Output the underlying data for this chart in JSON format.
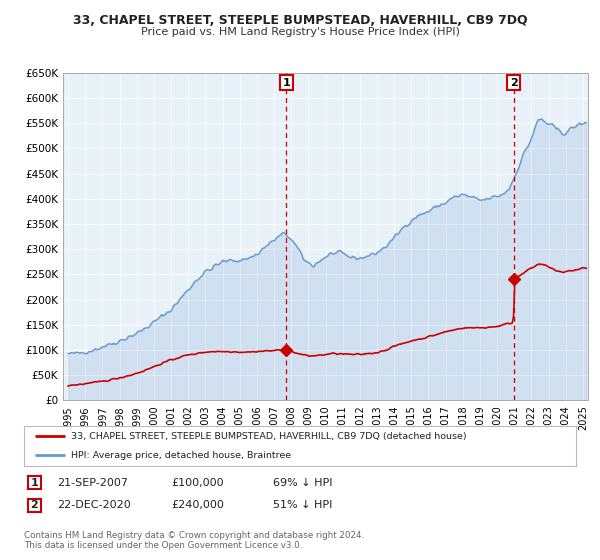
{
  "title": "33, CHAPEL STREET, STEEPLE BUMPSTEAD, HAVERHILL, CB9 7DQ",
  "subtitle": "Price paid vs. HM Land Registry's House Price Index (HPI)",
  "legend_line1": "33, CHAPEL STREET, STEEPLE BUMPSTEAD, HAVERHILL, CB9 7DQ (detached house)",
  "legend_line2": "HPI: Average price, detached house, Braintree",
  "annotation1_date": "21-SEP-2007",
  "annotation1_price": "£100,000",
  "annotation1_hpi": "69% ↓ HPI",
  "annotation2_date": "22-DEC-2020",
  "annotation2_price": "£240,000",
  "annotation2_hpi": "51% ↓ HPI",
  "copyright_text": "Contains HM Land Registry data © Crown copyright and database right 2024.\nThis data is licensed under the Open Government Licence v3.0.",
  "ylim": [
    0,
    650000
  ],
  "yticks": [
    0,
    50000,
    100000,
    150000,
    200000,
    250000,
    300000,
    350000,
    400000,
    450000,
    500000,
    550000,
    600000,
    650000
  ],
  "bg_color": "#ffffff",
  "plot_bg": "#e8f0f8",
  "red_line_color": "#cc0000",
  "blue_line_color": "#6699cc",
  "vline_color": "#cc0000",
  "marker_color": "#cc0000",
  "sale1_year": 2007.72,
  "sale1_price": 100000,
  "sale2_year": 2020.97,
  "sale2_price": 240000
}
